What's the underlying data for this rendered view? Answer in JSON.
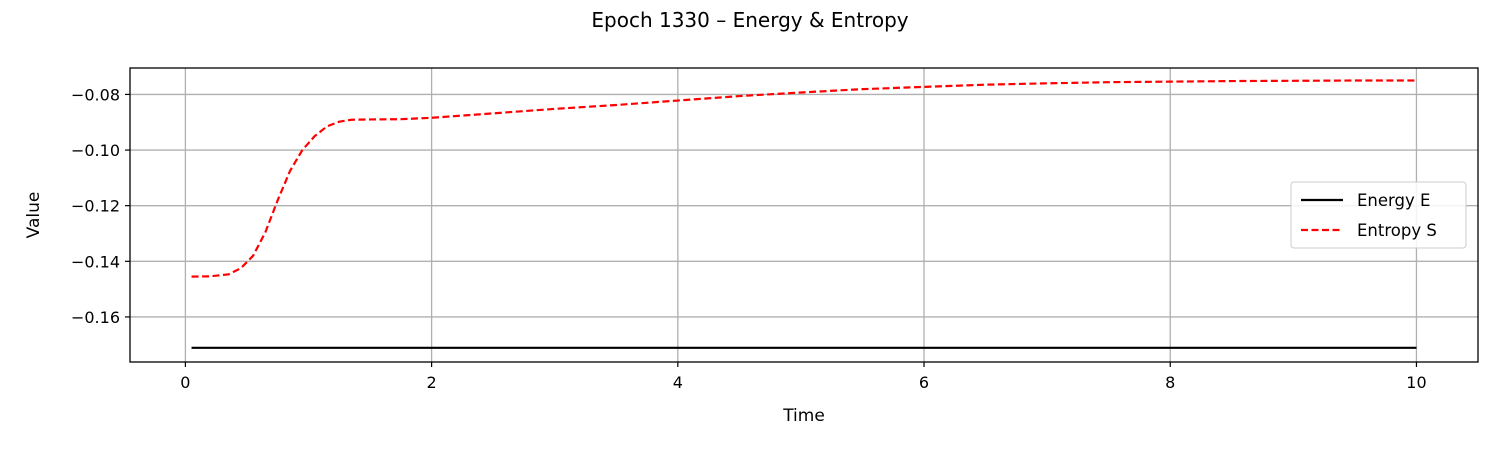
{
  "chart_data": {
    "type": "line",
    "title": "Epoch 1330 – Energy & Entropy",
    "xlabel": "Time",
    "ylabel": "Value",
    "xlim": [
      -0.45,
      10.5
    ],
    "ylim": [
      -0.1762,
      -0.0705
    ],
    "xticks": [
      0,
      2,
      4,
      6,
      8,
      10
    ],
    "yticks": [
      -0.16,
      -0.14,
      -0.12,
      -0.1,
      -0.08
    ],
    "x_tick_labels": [
      "0",
      "2",
      "4",
      "6",
      "8",
      "10"
    ],
    "y_tick_labels": [
      "−0.16",
      "−0.14",
      "−0.12",
      "−0.10",
      "−0.08"
    ],
    "grid": true,
    "legend_position": "right",
    "series": [
      {
        "name": "Energy E",
        "color": "#000000",
        "style": "solid",
        "x": [
          0.05,
          1,
          2,
          3,
          4,
          5,
          6,
          7,
          8,
          9,
          10
        ],
        "y": [
          -0.1711,
          -0.1711,
          -0.1711,
          -0.1711,
          -0.1711,
          -0.1711,
          -0.1711,
          -0.1711,
          -0.1711,
          -0.1711,
          -0.1711
        ]
      },
      {
        "name": "Entropy S",
        "color": "#ff0000",
        "style": "dashed",
        "x": [
          0.05,
          0.2,
          0.35,
          0.45,
          0.55,
          0.65,
          0.75,
          0.85,
          0.95,
          1.05,
          1.15,
          1.25,
          1.35,
          1.5,
          1.75,
          2.0,
          2.5,
          3.0,
          3.5,
          4.0,
          4.5,
          5.0,
          5.5,
          6.0,
          6.5,
          7.0,
          7.5,
          8.0,
          8.5,
          9.0,
          9.5,
          10.0
        ],
        "y": [
          -0.1455,
          -0.1454,
          -0.1447,
          -0.1425,
          -0.138,
          -0.1295,
          -0.118,
          -0.1075,
          -0.1,
          -0.095,
          -0.0915,
          -0.0898,
          -0.0891,
          -0.089,
          -0.0889,
          -0.0884,
          -0.0868,
          -0.0852,
          -0.0838,
          -0.0822,
          -0.0806,
          -0.0793,
          -0.0781,
          -0.0773,
          -0.0765,
          -0.076,
          -0.0756,
          -0.0754,
          -0.0752,
          -0.0751,
          -0.075,
          -0.075
        ]
      }
    ]
  }
}
